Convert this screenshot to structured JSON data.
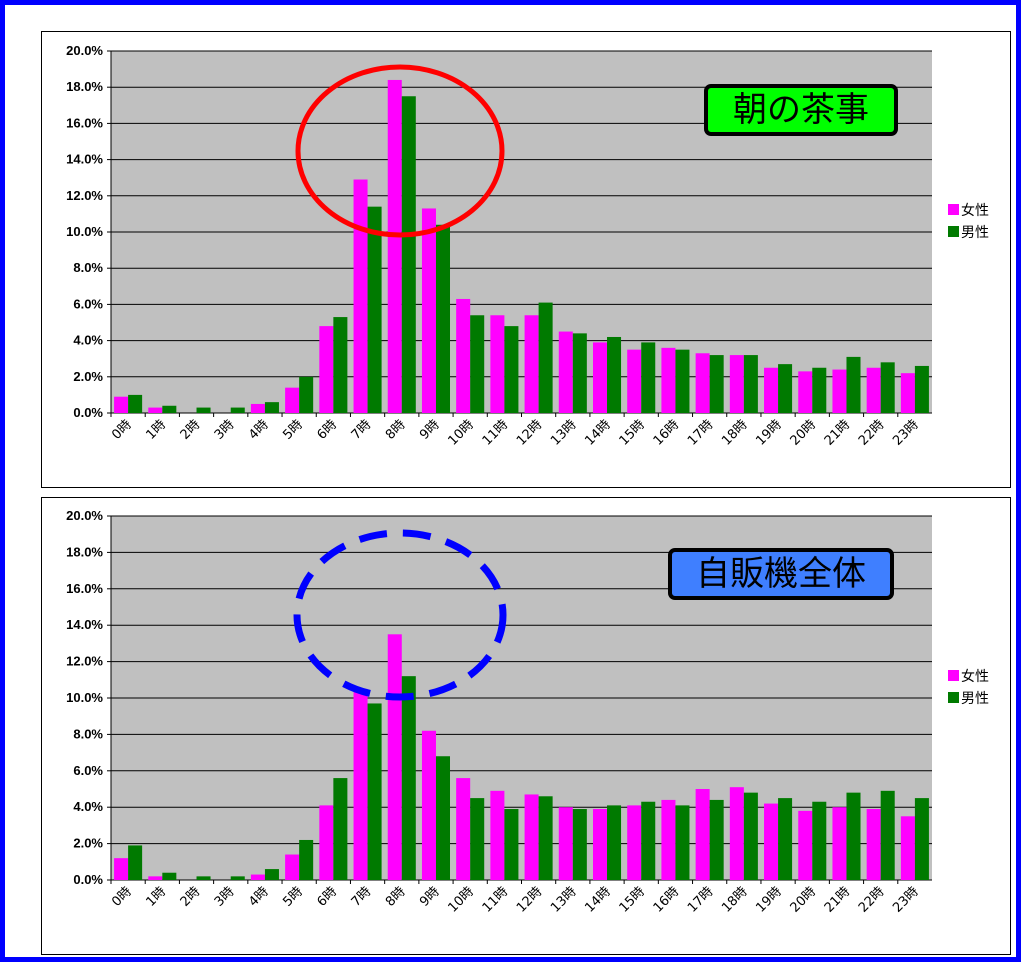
{
  "series_names": [
    "女性",
    "男性"
  ],
  "colors": {
    "female": "#ff00ff",
    "male": "#007a00",
    "plot_bg": "#c0c0c0",
    "frame": "#0000ff",
    "label1_bg": "#00ff00",
    "label2_bg": "#3f7fff",
    "circle1": "#ff0000",
    "circle2": "#0000ff"
  },
  "chart_data": [
    {
      "type": "bar",
      "categories": [
        "0時",
        "1時",
        "2時",
        "3時",
        "4時",
        "5時",
        "6時",
        "7時",
        "8時",
        "9時",
        "10時",
        "11時",
        "12時",
        "13時",
        "14時",
        "15時",
        "16時",
        "17時",
        "18時",
        "19時",
        "20時",
        "21時",
        "22時",
        "23時"
      ],
      "yticks": [
        "0.0%",
        "2.0%",
        "4.0%",
        "6.0%",
        "8.0%",
        "10.0%",
        "12.0%",
        "14.0%",
        "16.0%",
        "18.0%",
        "20.0%"
      ],
      "ylim": [
        0,
        20
      ],
      "grid": true,
      "legend": "right",
      "annotation": "朝の茶事",
      "highlight": "8時",
      "series": [
        {
          "name": "女性",
          "values": [
            0.9,
            0.3,
            0.0,
            0.0,
            0.5,
            1.4,
            4.8,
            12.9,
            18.4,
            11.3,
            6.3,
            5.4,
            5.4,
            4.5,
            3.9,
            3.5,
            3.6,
            3.3,
            3.2,
            2.5,
            2.3,
            2.4,
            2.5,
            2.2
          ]
        },
        {
          "name": "男性",
          "values": [
            1.0,
            0.4,
            0.3,
            0.3,
            0.6,
            2.0,
            5.3,
            11.4,
            17.5,
            10.4,
            5.4,
            4.8,
            6.1,
            4.4,
            4.2,
            3.9,
            3.5,
            3.2,
            3.2,
            2.7,
            2.5,
            3.1,
            2.8,
            2.6
          ]
        }
      ]
    },
    {
      "type": "bar",
      "categories": [
        "0時",
        "1時",
        "2時",
        "3時",
        "4時",
        "5時",
        "6時",
        "7時",
        "8時",
        "9時",
        "10時",
        "11時",
        "12時",
        "13時",
        "14時",
        "15時",
        "16時",
        "17時",
        "18時",
        "19時",
        "20時",
        "21時",
        "22時",
        "23時"
      ],
      "yticks": [
        "0.0%",
        "2.0%",
        "4.0%",
        "6.0%",
        "8.0%",
        "10.0%",
        "12.0%",
        "14.0%",
        "16.0%",
        "18.0%",
        "20.0%"
      ],
      "ylim": [
        0,
        20
      ],
      "grid": true,
      "legend": "right",
      "annotation": "自販機全体",
      "highlight": "8時",
      "series": [
        {
          "name": "女性",
          "values": [
            1.2,
            0.2,
            0.0,
            0.0,
            0.3,
            1.4,
            4.1,
            10.5,
            13.5,
            8.2,
            5.6,
            4.9,
            4.7,
            4.0,
            3.9,
            4.1,
            4.4,
            5.0,
            5.1,
            4.2,
            3.8,
            4.0,
            3.9,
            3.5
          ]
        },
        {
          "name": "男性",
          "values": [
            1.9,
            0.4,
            0.2,
            0.2,
            0.6,
            2.2,
            5.6,
            9.7,
            11.2,
            6.8,
            4.5,
            3.9,
            4.6,
            3.9,
            4.1,
            4.3,
            4.1,
            4.4,
            4.8,
            4.5,
            4.3,
            4.8,
            4.9,
            4.5
          ]
        }
      ]
    }
  ]
}
